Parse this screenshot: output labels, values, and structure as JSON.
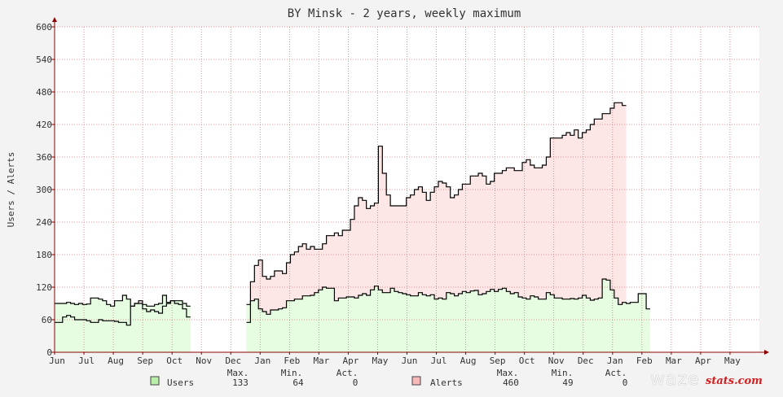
{
  "chart_data": {
    "type": "line",
    "title": "BY Minsk - 2 years, weekly maximum",
    "ylabel": "Users / Alerts",
    "ylim": [
      0,
      600
    ],
    "yticks": [
      "0",
      "60",
      "120",
      "180",
      "240",
      "300",
      "360",
      "420",
      "480",
      "540",
      "600"
    ],
    "xticks": [
      "Jun",
      "Jul",
      "Aug",
      "Sep",
      "Oct",
      "Nov",
      "Dec",
      "Jan",
      "Feb",
      "Mar",
      "Apr",
      "May",
      "Jun",
      "Jul",
      "Aug",
      "Sep",
      "Oct",
      "Nov",
      "Dec",
      "Jan",
      "Feb",
      "Mar",
      "Apr",
      "May"
    ],
    "grid": true,
    "colors": {
      "users_line": "#000000",
      "users_fill": "#e6fde2",
      "alerts_line": "#000000",
      "alerts_fill": "#fde6e6",
      "grid": "#e07070",
      "axis": "#8b0000"
    },
    "series": [
      {
        "name": "Users",
        "values": [
          90,
          90,
          90,
          92,
          90,
          88,
          90,
          88,
          89,
          100,
          100,
          98,
          95,
          88,
          85,
          95,
          95,
          105,
          98,
          85,
          90,
          90,
          88,
          85,
          85,
          88,
          90,
          105,
          92,
          95,
          95,
          95,
          90,
          85,
          null,
          null,
          null,
          null,
          null,
          null,
          null,
          null,
          null,
          null,
          null,
          null,
          null,
          null,
          88,
          95,
          98,
          80,
          75,
          70,
          78,
          78,
          80,
          82,
          95,
          95,
          98,
          98,
          104,
          104,
          105,
          110,
          115,
          120,
          118,
          118,
          95,
          100,
          100,
          102,
          102,
          100,
          105,
          108,
          105,
          115,
          122,
          115,
          110,
          110,
          118,
          112,
          110,
          108,
          106,
          104,
          104,
          110,
          106,
          104,
          106,
          98,
          100,
          98,
          110,
          108,
          104,
          108,
          112,
          110,
          113,
          114,
          106,
          108,
          112,
          116,
          112,
          116,
          118,
          112,
          108,
          110,
          102,
          100,
          98,
          104,
          102,
          98,
          98,
          110,
          106,
          100,
          100,
          98,
          98,
          99,
          98,
          100,
          105,
          100,
          96,
          98,
          100,
          135,
          133,
          115,
          100,
          88,
          92,
          90,
          92,
          92,
          108,
          108,
          80
        ]
      },
      {
        "name": "Alerts",
        "values": [
          55,
          55,
          65,
          68,
          65,
          60,
          60,
          60,
          58,
          55,
          55,
          60,
          58,
          58,
          58,
          57,
          55,
          55,
          50,
          85,
          90,
          95,
          80,
          75,
          78,
          75,
          72,
          85,
          90,
          95,
          90,
          88,
          80,
          65,
          null,
          null,
          null,
          null,
          null,
          null,
          null,
          null,
          null,
          null,
          null,
          null,
          null,
          null,
          55,
          130,
          160,
          170,
          140,
          135,
          140,
          150,
          150,
          145,
          165,
          180,
          185,
          195,
          200,
          190,
          195,
          190,
          190,
          200,
          215,
          215,
          220,
          215,
          225,
          225,
          245,
          270,
          285,
          280,
          265,
          270,
          275,
          380,
          330,
          290,
          270,
          270,
          270,
          270,
          285,
          290,
          300,
          305,
          295,
          280,
          295,
          305,
          315,
          312,
          305,
          285,
          290,
          300,
          310,
          310,
          325,
          325,
          330,
          325,
          310,
          315,
          330,
          330,
          335,
          340,
          340,
          335,
          335,
          350,
          355,
          345,
          340,
          340,
          345,
          360,
          395,
          395,
          395,
          400,
          405,
          400,
          410,
          395,
          405,
          410,
          420,
          430,
          430,
          440,
          440,
          450,
          460,
          460,
          455
        ]
      }
    ],
    "footer": {
      "users": {
        "name": "Users",
        "max": "133",
        "min": "64",
        "act": "0"
      },
      "alerts": {
        "name": "Alerts",
        "max": "460",
        "min": "49",
        "act": "0"
      },
      "labels": {
        "max": "Max.",
        "min": "Min.",
        "act": "Act."
      }
    }
  },
  "logo": {
    "part1": "waze",
    "part2": "stats.com"
  }
}
